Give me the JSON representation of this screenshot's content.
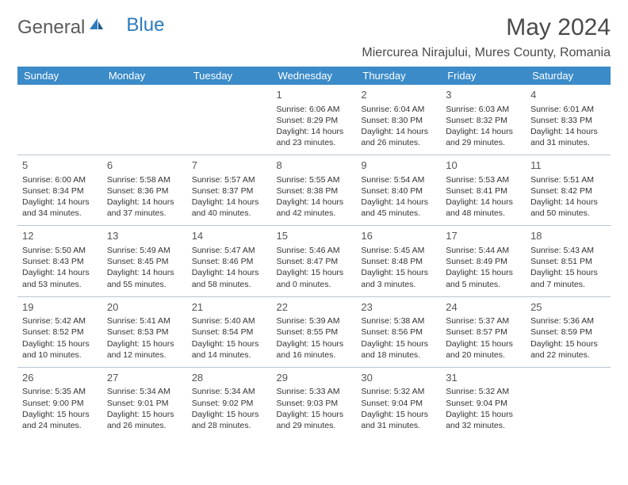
{
  "brand": {
    "part1": "General",
    "part2": "Blue"
  },
  "title": "May 2024",
  "location": "Miercurea Nirajului, Mures County, Romania",
  "day_headers": [
    "Sunday",
    "Monday",
    "Tuesday",
    "Wednesday",
    "Thursday",
    "Friday",
    "Saturday"
  ],
  "colors": {
    "header_bg": "#3b8bc9",
    "header_text": "#ffffff",
    "text": "#333333",
    "border": "#b8c5d0",
    "title": "#4a4a4a"
  },
  "weeks": [
    [
      null,
      null,
      null,
      {
        "n": "1",
        "sr": "6:06 AM",
        "ss": "8:29 PM",
        "dl": "14 hours and 23 minutes."
      },
      {
        "n": "2",
        "sr": "6:04 AM",
        "ss": "8:30 PM",
        "dl": "14 hours and 26 minutes."
      },
      {
        "n": "3",
        "sr": "6:03 AM",
        "ss": "8:32 PM",
        "dl": "14 hours and 29 minutes."
      },
      {
        "n": "4",
        "sr": "6:01 AM",
        "ss": "8:33 PM",
        "dl": "14 hours and 31 minutes."
      }
    ],
    [
      {
        "n": "5",
        "sr": "6:00 AM",
        "ss": "8:34 PM",
        "dl": "14 hours and 34 minutes."
      },
      {
        "n": "6",
        "sr": "5:58 AM",
        "ss": "8:36 PM",
        "dl": "14 hours and 37 minutes."
      },
      {
        "n": "7",
        "sr": "5:57 AM",
        "ss": "8:37 PM",
        "dl": "14 hours and 40 minutes."
      },
      {
        "n": "8",
        "sr": "5:55 AM",
        "ss": "8:38 PM",
        "dl": "14 hours and 42 minutes."
      },
      {
        "n": "9",
        "sr": "5:54 AM",
        "ss": "8:40 PM",
        "dl": "14 hours and 45 minutes."
      },
      {
        "n": "10",
        "sr": "5:53 AM",
        "ss": "8:41 PM",
        "dl": "14 hours and 48 minutes."
      },
      {
        "n": "11",
        "sr": "5:51 AM",
        "ss": "8:42 PM",
        "dl": "14 hours and 50 minutes."
      }
    ],
    [
      {
        "n": "12",
        "sr": "5:50 AM",
        "ss": "8:43 PM",
        "dl": "14 hours and 53 minutes."
      },
      {
        "n": "13",
        "sr": "5:49 AM",
        "ss": "8:45 PM",
        "dl": "14 hours and 55 minutes."
      },
      {
        "n": "14",
        "sr": "5:47 AM",
        "ss": "8:46 PM",
        "dl": "14 hours and 58 minutes."
      },
      {
        "n": "15",
        "sr": "5:46 AM",
        "ss": "8:47 PM",
        "dl": "15 hours and 0 minutes."
      },
      {
        "n": "16",
        "sr": "5:45 AM",
        "ss": "8:48 PM",
        "dl": "15 hours and 3 minutes."
      },
      {
        "n": "17",
        "sr": "5:44 AM",
        "ss": "8:49 PM",
        "dl": "15 hours and 5 minutes."
      },
      {
        "n": "18",
        "sr": "5:43 AM",
        "ss": "8:51 PM",
        "dl": "15 hours and 7 minutes."
      }
    ],
    [
      {
        "n": "19",
        "sr": "5:42 AM",
        "ss": "8:52 PM",
        "dl": "15 hours and 10 minutes."
      },
      {
        "n": "20",
        "sr": "5:41 AM",
        "ss": "8:53 PM",
        "dl": "15 hours and 12 minutes."
      },
      {
        "n": "21",
        "sr": "5:40 AM",
        "ss": "8:54 PM",
        "dl": "15 hours and 14 minutes."
      },
      {
        "n": "22",
        "sr": "5:39 AM",
        "ss": "8:55 PM",
        "dl": "15 hours and 16 minutes."
      },
      {
        "n": "23",
        "sr": "5:38 AM",
        "ss": "8:56 PM",
        "dl": "15 hours and 18 minutes."
      },
      {
        "n": "24",
        "sr": "5:37 AM",
        "ss": "8:57 PM",
        "dl": "15 hours and 20 minutes."
      },
      {
        "n": "25",
        "sr": "5:36 AM",
        "ss": "8:59 PM",
        "dl": "15 hours and 22 minutes."
      }
    ],
    [
      {
        "n": "26",
        "sr": "5:35 AM",
        "ss": "9:00 PM",
        "dl": "15 hours and 24 minutes."
      },
      {
        "n": "27",
        "sr": "5:34 AM",
        "ss": "9:01 PM",
        "dl": "15 hours and 26 minutes."
      },
      {
        "n": "28",
        "sr": "5:34 AM",
        "ss": "9:02 PM",
        "dl": "15 hours and 28 minutes."
      },
      {
        "n": "29",
        "sr": "5:33 AM",
        "ss": "9:03 PM",
        "dl": "15 hours and 29 minutes."
      },
      {
        "n": "30",
        "sr": "5:32 AM",
        "ss": "9:04 PM",
        "dl": "15 hours and 31 minutes."
      },
      {
        "n": "31",
        "sr": "5:32 AM",
        "ss": "9:04 PM",
        "dl": "15 hours and 32 minutes."
      },
      null
    ]
  ],
  "labels": {
    "sunrise": "Sunrise:",
    "sunset": "Sunset:",
    "daylight": "Daylight:"
  }
}
